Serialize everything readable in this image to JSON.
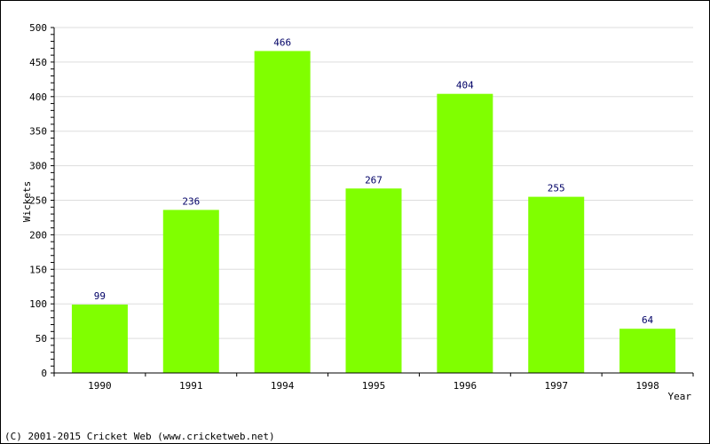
{
  "chart_data": {
    "type": "bar",
    "title": "",
    "xlabel": "Year",
    "ylabel": "Wickets",
    "categories": [
      "1990",
      "1991",
      "1994",
      "1995",
      "1996",
      "1997",
      "1998"
    ],
    "values": [
      99,
      236,
      466,
      267,
      404,
      255,
      64
    ],
    "ylim": [
      0,
      500
    ],
    "yticks": [
      0,
      50,
      100,
      150,
      200,
      250,
      300,
      350,
      400,
      450,
      500
    ],
    "grid": true,
    "legend": "none",
    "bar_color": "#80ff00",
    "grid_color": "#dddddd",
    "value_label_color": "#000066"
  },
  "footer": {
    "copyright": "(C) 2001-2015 Cricket Web (www.cricketweb.net)"
  }
}
